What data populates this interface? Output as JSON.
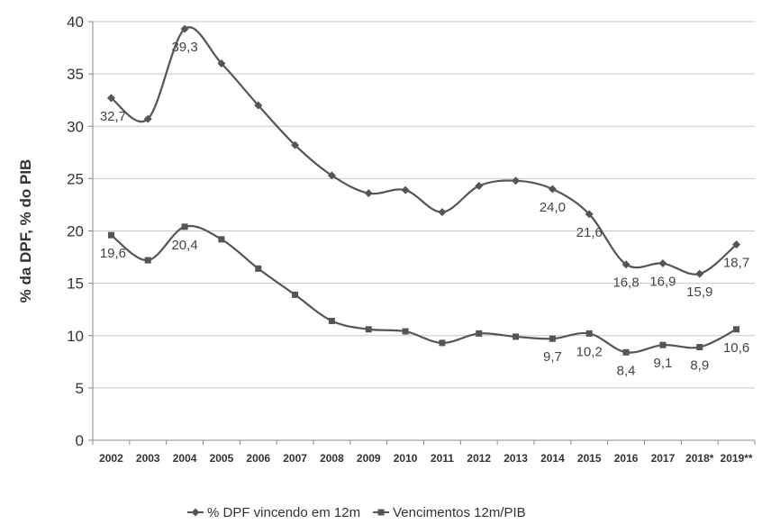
{
  "chart_data": {
    "type": "line",
    "ylabel": "% da DPF, % do PIB",
    "xlabel": "",
    "ylim": [
      0,
      40
    ],
    "yticks": [
      "0",
      "5",
      "10",
      "15",
      "20",
      "25",
      "30",
      "35",
      "40"
    ],
    "categories": [
      "2002",
      "2003",
      "2004",
      "2005",
      "2006",
      "2007",
      "2008",
      "2009",
      "2010",
      "2011",
      "2012",
      "2013",
      "2014",
      "2015",
      "2016",
      "2017",
      "2018*",
      "2019**"
    ],
    "grid": true,
    "legend_position": "bottom",
    "series": [
      {
        "name": "% DPF vincendo em 12m",
        "marker": "diamond",
        "color": "#555555",
        "values": [
          32.7,
          30.7,
          39.3,
          36.0,
          32.0,
          28.2,
          25.3,
          23.6,
          23.9,
          21.8,
          24.3,
          24.8,
          24.0,
          21.6,
          16.8,
          16.9,
          15.9,
          18.7
        ],
        "labels": [
          "32,7",
          null,
          "39,3",
          null,
          null,
          null,
          null,
          null,
          null,
          null,
          null,
          null,
          "24,0",
          "21,6",
          "16,8",
          "16,9",
          "15,9",
          "18,7"
        ]
      },
      {
        "name": "Vencimentos 12m/PIB",
        "marker": "square",
        "color": "#555555",
        "values": [
          19.6,
          17.2,
          20.4,
          19.2,
          16.4,
          13.9,
          11.4,
          10.6,
          10.4,
          9.3,
          10.2,
          9.9,
          9.7,
          10.2,
          8.4,
          9.1,
          8.9,
          10.6
        ],
        "labels": [
          "19,6",
          null,
          "20,4",
          null,
          null,
          null,
          null,
          null,
          null,
          null,
          null,
          null,
          "9,7",
          "10,2",
          "8,4",
          "9,1",
          "8,9",
          "10,6"
        ]
      }
    ]
  }
}
